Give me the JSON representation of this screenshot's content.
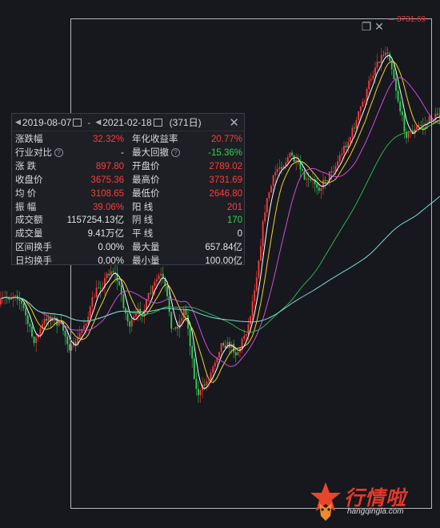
{
  "peak_label": "3731.69",
  "toolbar_icons": [
    "window-icon",
    "close-icon"
  ],
  "panel": {
    "start_date": "2019-08-07",
    "separator": "-",
    "end_date": "2021-02-18",
    "days": "(371日)",
    "rows": [
      {
        "l": "涨跌幅",
        "v": "32.32%",
        "vc": "red",
        "l2": "年化收益率",
        "v2": "20.77%",
        "v2c": "red"
      },
      {
        "l": "行业对比",
        "lq": true,
        "v": "-",
        "vc": "white",
        "l2": "最大回撤",
        "l2q": true,
        "v2": "-15.36%",
        "v2c": "green"
      },
      {
        "l": "涨 跌",
        "v": "897.80",
        "vc": "red",
        "l2": "开盘价",
        "v2": "2789.02",
        "v2c": "red"
      },
      {
        "l": "收盘价",
        "v": "3675.36",
        "vc": "red",
        "l2": "最高价",
        "v2": "3731.69",
        "v2c": "red"
      },
      {
        "l": "均 价",
        "v": "3108.65",
        "vc": "red",
        "l2": "最低价",
        "v2": "2646.80",
        "v2c": "red"
      },
      {
        "l": "振 幅",
        "v": "39.06%",
        "vc": "red",
        "l2": "阳 线",
        "v2": "201",
        "v2c": "red"
      },
      {
        "l": "成交额",
        "v": "1157254.13亿",
        "vc": "white",
        "l2": "阴 线",
        "v2": "170",
        "v2c": "green"
      },
      {
        "l": "成交量",
        "v": "9.41万亿",
        "vc": "white",
        "l2": "平 线",
        "v2": "0",
        "v2c": "white"
      },
      {
        "l": "区间换手",
        "v": "0.00%",
        "vc": "white",
        "l2": "最大量",
        "v2": "657.84亿",
        "v2c": "white"
      },
      {
        "l": "日均换手",
        "v": "0.00%",
        "vc": "white",
        "l2": "最小量",
        "v2": "100.00亿",
        "v2c": "white"
      }
    ]
  },
  "watermark": {
    "brand": "行情啦",
    "domain": "hangqingla.com"
  },
  "colors": {
    "up": "#ff3b3b",
    "down": "#2fd158",
    "ma5": "#ffffff",
    "ma10": "#f2d22e",
    "ma20": "#d34ad6",
    "ma60": "#2fb14f",
    "ma120": "#7fd8d8"
  }
}
